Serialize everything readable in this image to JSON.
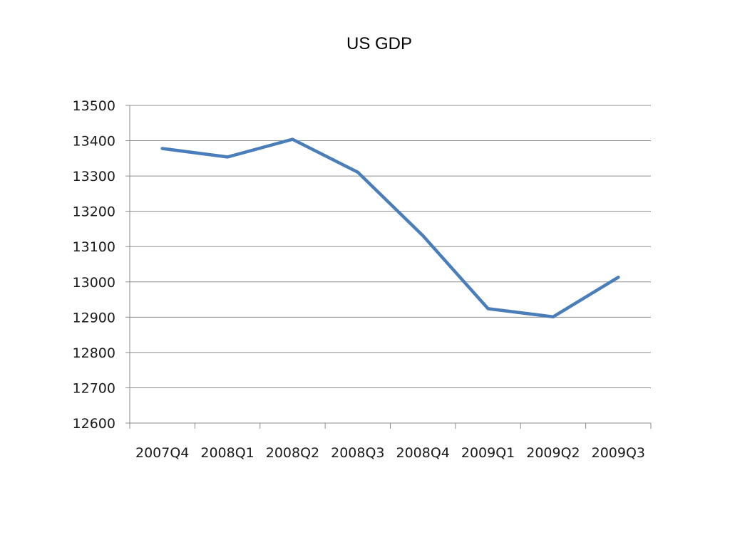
{
  "chart_data": {
    "type": "line",
    "title": "US GDP",
    "xlabel": "",
    "ylabel": "",
    "categories": [
      "2007Q4",
      "2008Q1",
      "2008Q2",
      "2008Q3",
      "2008Q4",
      "2009Q1",
      "2009Q2",
      "2009Q3"
    ],
    "series": [
      {
        "values": [
          13378,
          13354,
          13404,
          13311,
          13131,
          12924,
          12901,
          13013
        ],
        "color": "#4a7ebb"
      }
    ],
    "ylim": [
      12600,
      13500
    ],
    "yticks": [
      12600,
      12700,
      12800,
      12900,
      13000,
      13100,
      13200,
      13300,
      13400,
      13500
    ],
    "grid": true,
    "legend": "none",
    "gridline_color": "#8c8c8c",
    "axis_color": "#8c8c8c"
  }
}
